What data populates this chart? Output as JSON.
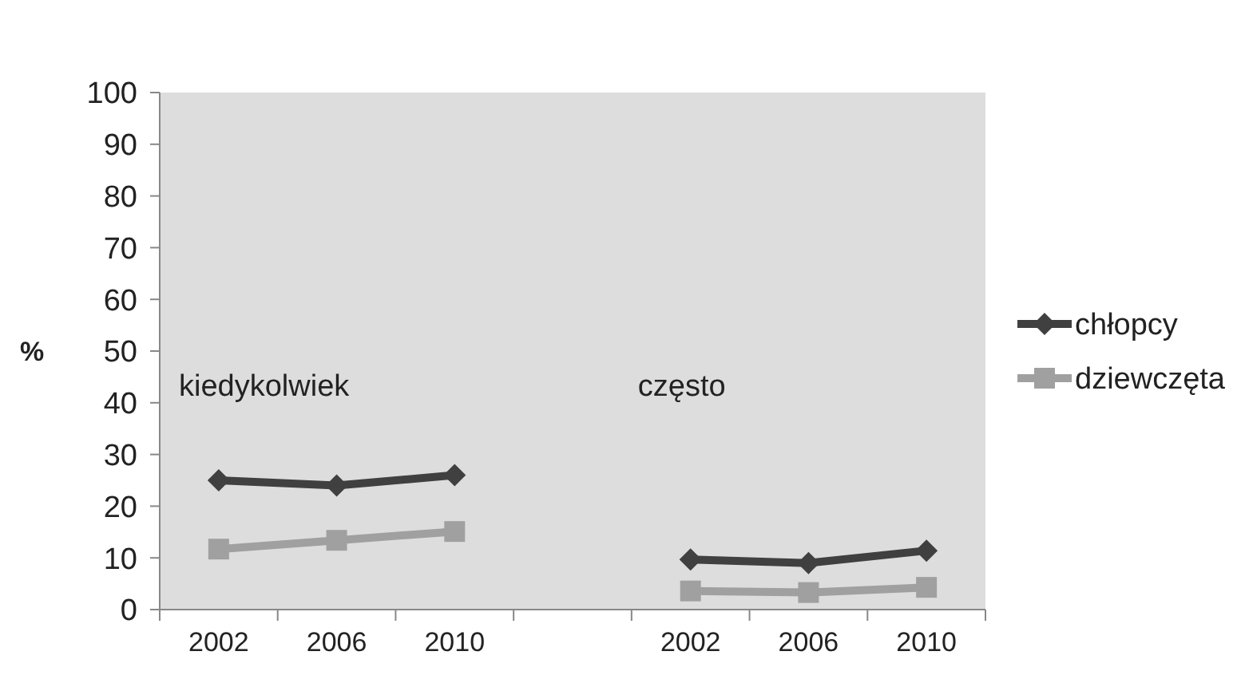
{
  "chart_data": {
    "type": "line",
    "ylabel": "%",
    "categories": [
      "2002",
      "2006",
      "2010",
      null,
      "2002",
      "2006",
      "2010"
    ],
    "series": [
      {
        "name": "chłopcy",
        "color": "#404040",
        "marker": "diamond",
        "values": [
          25,
          24,
          26,
          null,
          9.7,
          9,
          11.4
        ]
      },
      {
        "name": "dziewczęta",
        "color": "#a0a0a0",
        "marker": "square",
        "values": [
          11.7,
          13.4,
          15.1,
          null,
          3.6,
          3.3,
          4.3
        ]
      }
    ],
    "ylim": [
      0,
      100
    ],
    "yticks": [
      0,
      10,
      20,
      30,
      40,
      50,
      60,
      70,
      80,
      90,
      100
    ],
    "legend": "right",
    "grid": false,
    "annotations": [
      "kiedykolwiek",
      "często"
    ]
  }
}
